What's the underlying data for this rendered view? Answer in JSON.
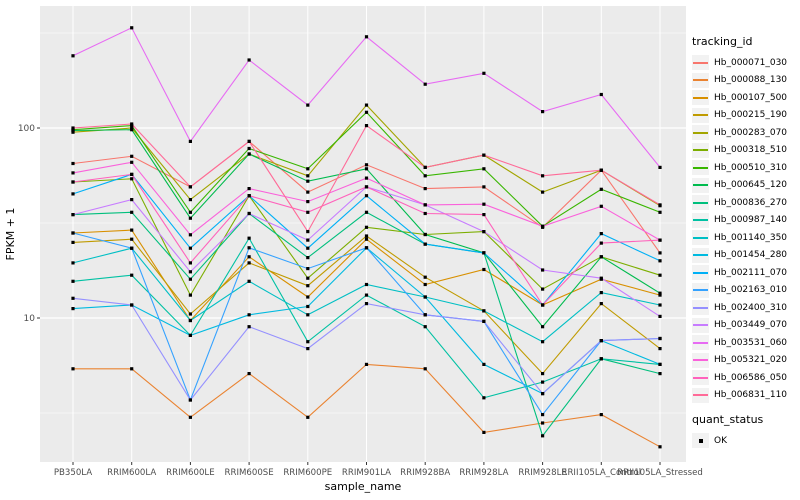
{
  "chart_data": {
    "type": "line",
    "xlabel": "sample_name",
    "ylabel": "FPKM + 1",
    "y_scale": "log10",
    "y_ticks": [
      100,
      10
    ],
    "y_minor_gridlines": [
      316.23,
      31.62,
      3.162
    ],
    "ylim": [
      1.75,
      437
    ],
    "panel_bg": "#EBEBEB",
    "grid_color": "#FFFFFF",
    "tick_color": "#333333",
    "tick_label_color": "#4D4D4D",
    "point_marker": "black-square",
    "legend_title": "tracking_id",
    "quant_legend": {
      "title": "quant_status",
      "items": [
        {
          "label": "OK",
          "marker": "black-square"
        }
      ]
    },
    "categories": [
      "PB350LA",
      "RRIM600LA",
      "RRIM600LE",
      "RRIM600SE",
      "RRIM600PE",
      "RRIM901LA",
      "RRIM928BA",
      "RRIM928LA",
      "RRIM928LE",
      "RRII105LA_Control",
      "RRII105LA_Stressed"
    ],
    "series": [
      {
        "name": "Hb_000071_030",
        "color": "#F8766D",
        "values": [
          65,
          71,
          49,
          85,
          46,
          64,
          48,
          49,
          30,
          60,
          22
        ]
      },
      {
        "name": "Hb_000088_130",
        "color": "#EA8331",
        "values": [
          5.4,
          5.4,
          3.0,
          5.1,
          3.0,
          5.7,
          5.4,
          2.5,
          2.8,
          3.1,
          2.1
        ]
      },
      {
        "name": "Hb_000107_500",
        "color": "#D89000",
        "values": [
          28,
          29,
          9.7,
          21,
          12.9,
          26,
          15,
          18,
          11.7,
          16,
          13.2
        ]
      },
      {
        "name": "Hb_000215_190",
        "color": "#C09B00",
        "values": [
          25,
          26,
          10.5,
          19.5,
          14.8,
          27,
          16.4,
          10.9,
          5.1,
          11.9,
          6.9
        ]
      },
      {
        "name": "Hb_000283_070",
        "color": "#A3A500",
        "values": [
          95,
          100,
          42,
          73,
          56,
          132,
          62,
          72,
          46,
          60,
          39
        ]
      },
      {
        "name": "Hb_000318_510",
        "color": "#7CAE00",
        "values": [
          52,
          54,
          13.2,
          44,
          16.2,
          30,
          27.5,
          28.5,
          14.2,
          21,
          16.8
        ]
      },
      {
        "name": "Hb_000510_310",
        "color": "#39B600",
        "values": [
          98,
          103,
          36,
          78,
          61,
          121,
          56,
          61,
          30.4,
          47.6,
          36
        ]
      },
      {
        "name": "Hb_000645_120",
        "color": "#00BB4E",
        "values": [
          97,
          98,
          33.5,
          73,
          52.5,
          61,
          27.5,
          22,
          9.0,
          21,
          13.5
        ]
      },
      {
        "name": "Hb_000836_270",
        "color": "#00BF7D",
        "values": [
          35,
          36,
          16,
          35.5,
          20.8,
          36,
          24.5,
          22,
          2.4,
          6.1,
          5.1
        ]
      },
      {
        "name": "Hb_000987_140",
        "color": "#00C1A3",
        "values": [
          15.6,
          16.8,
          8.1,
          26.3,
          7.5,
          13.2,
          9.0,
          3.8,
          4.6,
          6.1,
          5.7
        ]
      },
      {
        "name": "Hb_001140_350",
        "color": "#00BFC4",
        "values": [
          19.5,
          23.3,
          9.7,
          15.6,
          10.4,
          15,
          12.9,
          10.9,
          7.5,
          13.6,
          11.7
        ]
      },
      {
        "name": "Hb_001454_280",
        "color": "#00BAE0",
        "values": [
          11.2,
          11.7,
          8.1,
          10.4,
          11.5,
          23.4,
          12.9,
          5.7,
          4.0,
          7.6,
          5.7
        ]
      },
      {
        "name": "Hb_002111_070",
        "color": "#00B0F6",
        "values": [
          45,
          57,
          23.3,
          44,
          23.3,
          44,
          24.5,
          22,
          11.7,
          27.8,
          20
        ]
      },
      {
        "name": "Hb_002163_010",
        "color": "#35A2FF",
        "values": [
          28,
          23.3,
          3.7,
          23.4,
          18.2,
          23.4,
          10.4,
          9.6,
          3.1,
          7.6,
          7.8
        ]
      },
      {
        "name": "Hb_002400_310",
        "color": "#9590FF",
        "values": [
          12.7,
          11.7,
          3.7,
          9.0,
          6.9,
          11.9,
          10.4,
          9.6,
          4.0,
          7.6,
          7.8
        ]
      },
      {
        "name": "Hb_003449_070",
        "color": "#C77CFF",
        "values": [
          35,
          42,
          17.5,
          35.5,
          25.7,
          49,
          39.4,
          28.5,
          17.9,
          16.2,
          10.2
        ]
      },
      {
        "name": "Hb_003531_060",
        "color": "#E76BF3",
        "values": [
          240,
          337,
          85,
          228,
          132,
          302,
          170,
          194,
          122,
          150,
          62
        ]
      },
      {
        "name": "Hb_005321_020",
        "color": "#FA62DB",
        "values": [
          58,
          66,
          27.4,
          48,
          41,
          54.5,
          39.4,
          39.7,
          30.4,
          38.7,
          25.7
        ]
      },
      {
        "name": "Hb_006586_050",
        "color": "#FF62BC",
        "values": [
          52,
          57,
          19.5,
          44,
          36,
          49,
          35.5,
          35,
          11.7,
          24.8,
          25.7
        ]
      },
      {
        "name": "Hb_006831_110",
        "color": "#FF6A98",
        "values": [
          100,
          105,
          49,
          85,
          28.5,
          103,
          62,
          72,
          56,
          60,
          39.4
        ]
      }
    ]
  }
}
